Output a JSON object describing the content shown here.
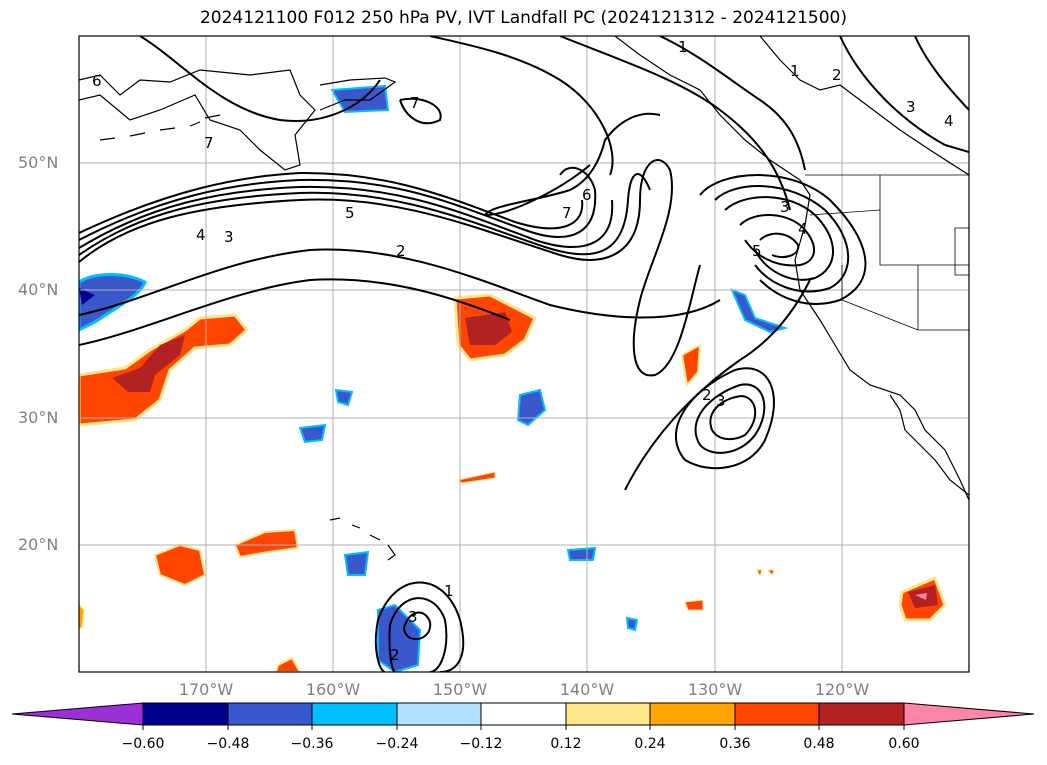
{
  "title": "2024121100 F012 250 hPa PV, IVT Landfall PC (2024121312 - 2024121500)",
  "lat_labels": [
    "50°N",
    "40°N",
    "30°N",
    "20°N"
  ],
  "lon_labels": [
    "170°W",
    "160°W",
    "150°W",
    "140°W",
    "130°W",
    "120°W"
  ],
  "map_extent": {
    "lon_min": -180,
    "lon_max": -110,
    "lat_min": 10,
    "lat_max": 60
  },
  "colorbar": {
    "ticks": [
      "−0.60",
      "−0.48",
      "−0.36",
      "−0.24",
      "−0.12",
      "0.12",
      "0.24",
      "0.36",
      "0.48",
      "0.60"
    ],
    "colors": [
      "#9b30d9",
      "#00008b",
      "#3a58cc",
      "#00bfff",
      "#b0e2ff",
      "#ffffff",
      "#ffe68a",
      "#ffa500",
      "#ff4500",
      "#b22222",
      "#ff85a8"
    ]
  },
  "contour_labels": [
    "6",
    "7",
    "7",
    "1",
    "1",
    "2",
    "3",
    "4",
    "5",
    "4",
    "3",
    "2",
    "6",
    "7",
    "3",
    "4",
    "5",
    "2",
    "3",
    "1",
    "3",
    "2"
  ],
  "colors": {
    "land_line": "#000000",
    "grid": "#b0b0b0",
    "contour": "#000000"
  }
}
